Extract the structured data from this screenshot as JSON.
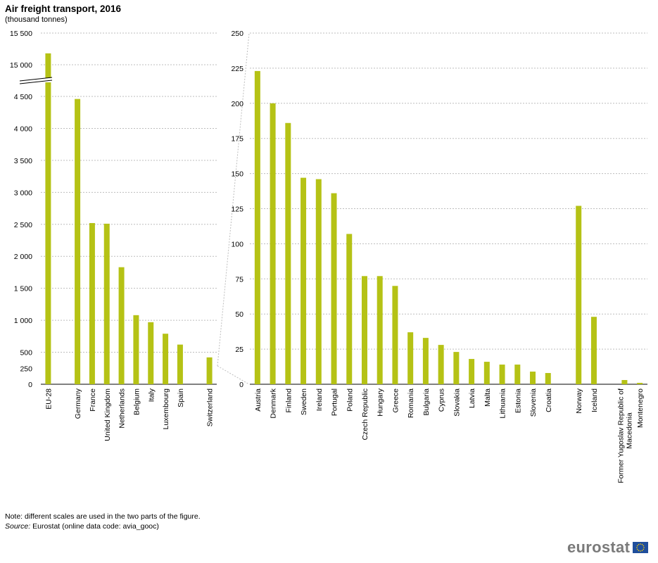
{
  "title": "Air freight transport, 2016",
  "subtitle": "(thousand tonnes)",
  "note": "Note: different scales are used in the two parts of the figure.",
  "source_label": "Source:",
  "source_text": " Eurostat (online data code: avia_gooc)",
  "logo_text": "eurostat",
  "colors": {
    "bar": "#b5c215",
    "grid": "#bdbdbd"
  },
  "chart_data": [
    {
      "type": "bar",
      "title": "",
      "xlabel": "",
      "ylabel": "",
      "broken_axis": true,
      "axis_break_between": [
        4500,
        15000
      ],
      "ylim": [
        0,
        15500
      ],
      "yticks_lower": [
        0,
        250,
        500,
        1000,
        1500,
        2000,
        2500,
        3000,
        3500,
        4000,
        4500
      ],
      "yticks_upper": [
        15000,
        15500
      ],
      "ytick_labels": {
        "0": "0",
        "250": "250",
        "500": "500",
        "1000": "1 000",
        "1500": "1 500",
        "2000": "2 000",
        "2500": "2 500",
        "3000": "3 000",
        "3500": "3 500",
        "4000": "4 000",
        "4500": "4 500",
        "15000": "15 000",
        "15500": "15 500"
      },
      "categories": [
        "EU-28",
        "",
        "Germany",
        "France",
        "United Kingdom",
        "Netherlands",
        "Belgium",
        "Italy",
        "Luxembourg",
        "Spain",
        "",
        "Switzerland"
      ],
      "values": [
        15180,
        null,
        4460,
        2520,
        2510,
        1830,
        1080,
        970,
        790,
        620,
        null,
        420
      ]
    },
    {
      "type": "bar",
      "title": "",
      "xlabel": "",
      "ylabel": "",
      "ylim": [
        0,
        250
      ],
      "yticks": [
        0,
        25,
        50,
        75,
        100,
        125,
        150,
        175,
        200,
        225,
        250
      ],
      "categories": [
        "Austria",
        "Denmark",
        "Finland",
        "Sweden",
        "Ireland",
        "Portugal",
        "Poland",
        "Czech Republic",
        "Hungary",
        "Greece",
        "Romania",
        "Bulgaria",
        "Cyprus",
        "Slovakia",
        "Latvia",
        "Malta",
        "Lithuania",
        "Estonia",
        "Slovenia",
        "Croatia",
        "",
        "Norway",
        "Iceland",
        "",
        "Former Yugoslav Republic of Macedonia",
        "Montenegro"
      ],
      "category_lines": {
        "Former Yugoslav Republic of Macedonia": [
          "Former Yugoslav Republic of",
          "Macedonia"
        ]
      },
      "values": [
        223,
        200,
        186,
        147,
        146,
        136,
        107,
        77,
        77,
        70,
        37,
        33,
        28,
        23,
        18,
        16,
        14,
        14,
        9,
        8,
        null,
        127,
        48,
        null,
        3,
        1
      ]
    }
  ]
}
